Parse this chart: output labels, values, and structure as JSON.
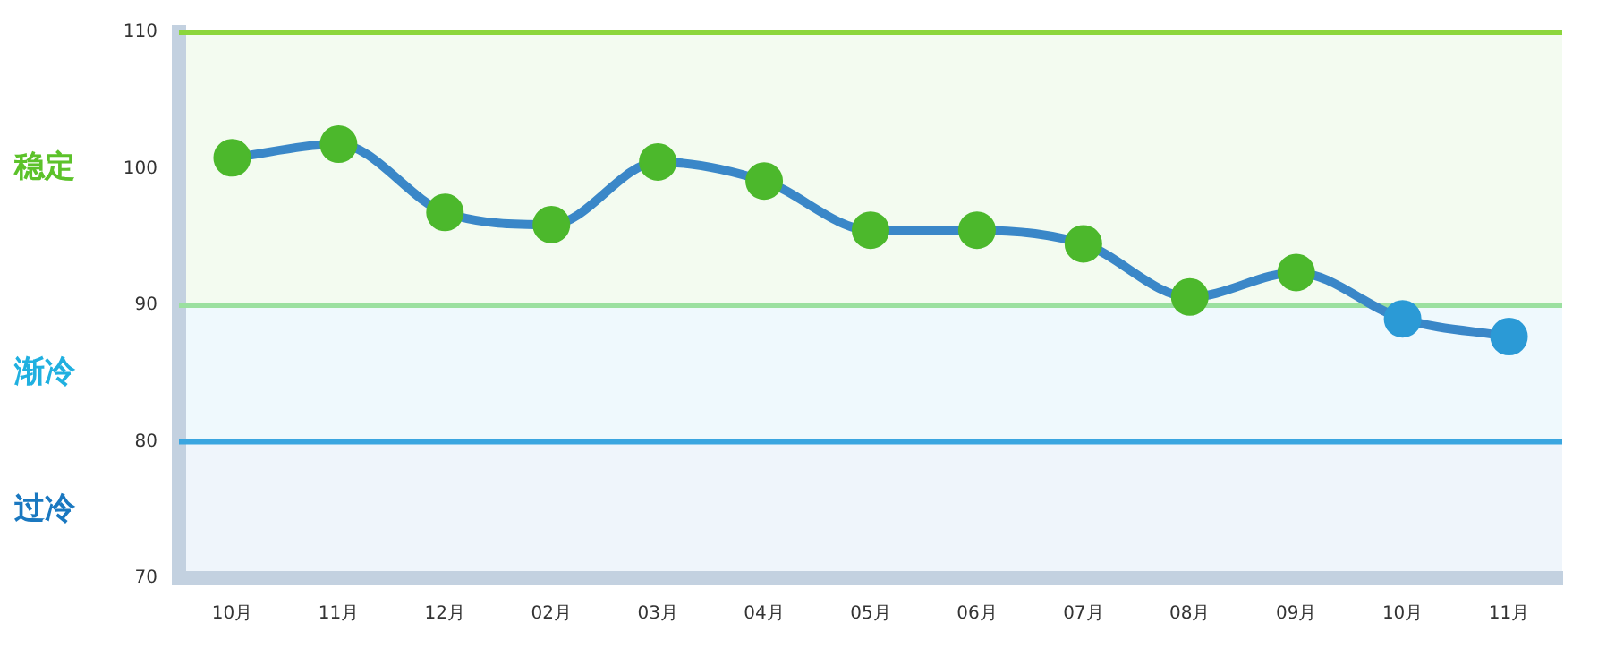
{
  "chart_data": {
    "type": "line",
    "categories": [
      "10月",
      "11月",
      "12月",
      "02月",
      "03月",
      "04月",
      "05月",
      "06月",
      "07月",
      "08月",
      "09月",
      "10月",
      "11月"
    ],
    "series": [
      {
        "color": "#3a87c8",
        "values": [
          100.8,
          101.8,
          96.8,
          95.9,
          100.5,
          99.1,
          95.5,
          95.5,
          94.5,
          90.6,
          92.4,
          89,
          87.7
        ],
        "colors": [
          "#4cb82c",
          "#4cb82c",
          "#4cb82c",
          "#4cb82c",
          "#4cb82c",
          "#4cb82c",
          "#4cb82c",
          "#4cb82c",
          "#4cb82c",
          "#4cb82c",
          "#4cb82c",
          "#2b9ad6",
          "#2b9ad6"
        ]
      }
    ],
    "ylim": [
      70,
      110
    ],
    "yticks": [
      70,
      80,
      90,
      100,
      110
    ],
    "grid": false,
    "legend": false,
    "marker": "circle",
    "line_style": "solid",
    "ref_lines": [
      {
        "axis": "y",
        "value": 110,
        "color": "#8cd63c"
      },
      {
        "axis": "y",
        "value": 90,
        "color": "#9be0a0"
      },
      {
        "axis": "y",
        "value": 80,
        "color": "#3aa6e0"
      }
    ],
    "bands": [
      {
        "axis": "y",
        "from": 90,
        "to": 110,
        "label": "稳定",
        "color": "#5cc22a"
      },
      {
        "axis": "y",
        "from": 80,
        "to": 90,
        "label": "渐冷",
        "color": "#20b0e0"
      },
      {
        "axis": "y",
        "from": 70,
        "to": 80,
        "label": "过冷",
        "color": "#1a78c0"
      }
    ]
  }
}
